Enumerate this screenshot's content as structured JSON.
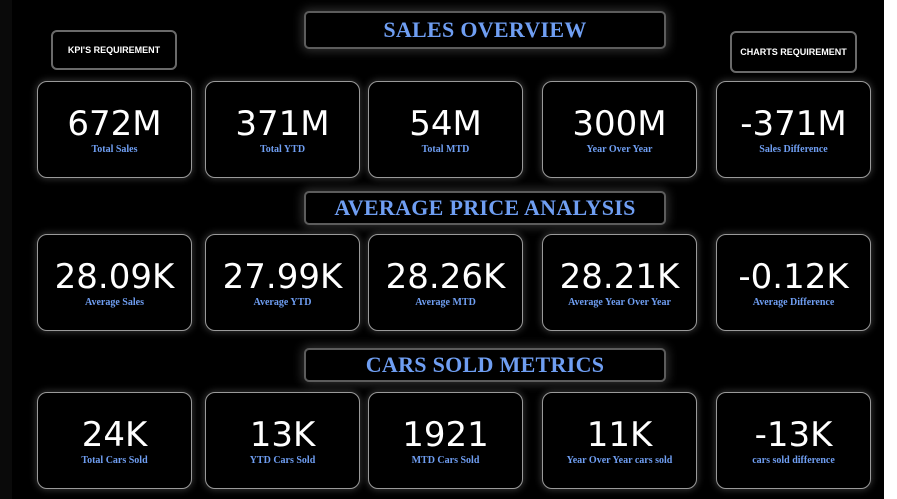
{
  "buttons": {
    "kpi": "KPI'S REQUIREMENT",
    "charts": "CHARTS REQUIREMENT"
  },
  "sections": {
    "sales": {
      "title": "SALES OVERVIEW",
      "cards": [
        {
          "value": "672M",
          "label": "Total Sales"
        },
        {
          "value": "371M",
          "label": "Total YTD"
        },
        {
          "value": "54M",
          "label": "Total MTD"
        },
        {
          "value": "300M",
          "label": "Year Over Year"
        },
        {
          "value": "-371M",
          "label": "Sales Difference"
        }
      ]
    },
    "price": {
      "title": "AVERAGE PRICE ANALYSIS",
      "cards": [
        {
          "value": "28.09K",
          "label": "Average Sales"
        },
        {
          "value": "27.99K",
          "label": "Average YTD"
        },
        {
          "value": "28.26K",
          "label": "Average MTD"
        },
        {
          "value": "28.21K",
          "label": "Average Year Over Year"
        },
        {
          "value": "-0.12K",
          "label": "Average Difference"
        }
      ]
    },
    "cars": {
      "title": "CARS SOLD METRICS",
      "cards": [
        {
          "value": "24K",
          "label": "Total Cars Sold"
        },
        {
          "value": "13K",
          "label": "YTD Cars Sold"
        },
        {
          "value": "1921",
          "label": "MTD Cars Sold"
        },
        {
          "value": "11K",
          "label": "Year Over Year cars sold"
        },
        {
          "value": "-13K",
          "label": "cars sold difference"
        }
      ]
    }
  },
  "colors": {
    "background": "#000000",
    "accent_blue": "#6f9ef2",
    "value_white": "#ffffff",
    "card_border": "#9a9a9a"
  }
}
